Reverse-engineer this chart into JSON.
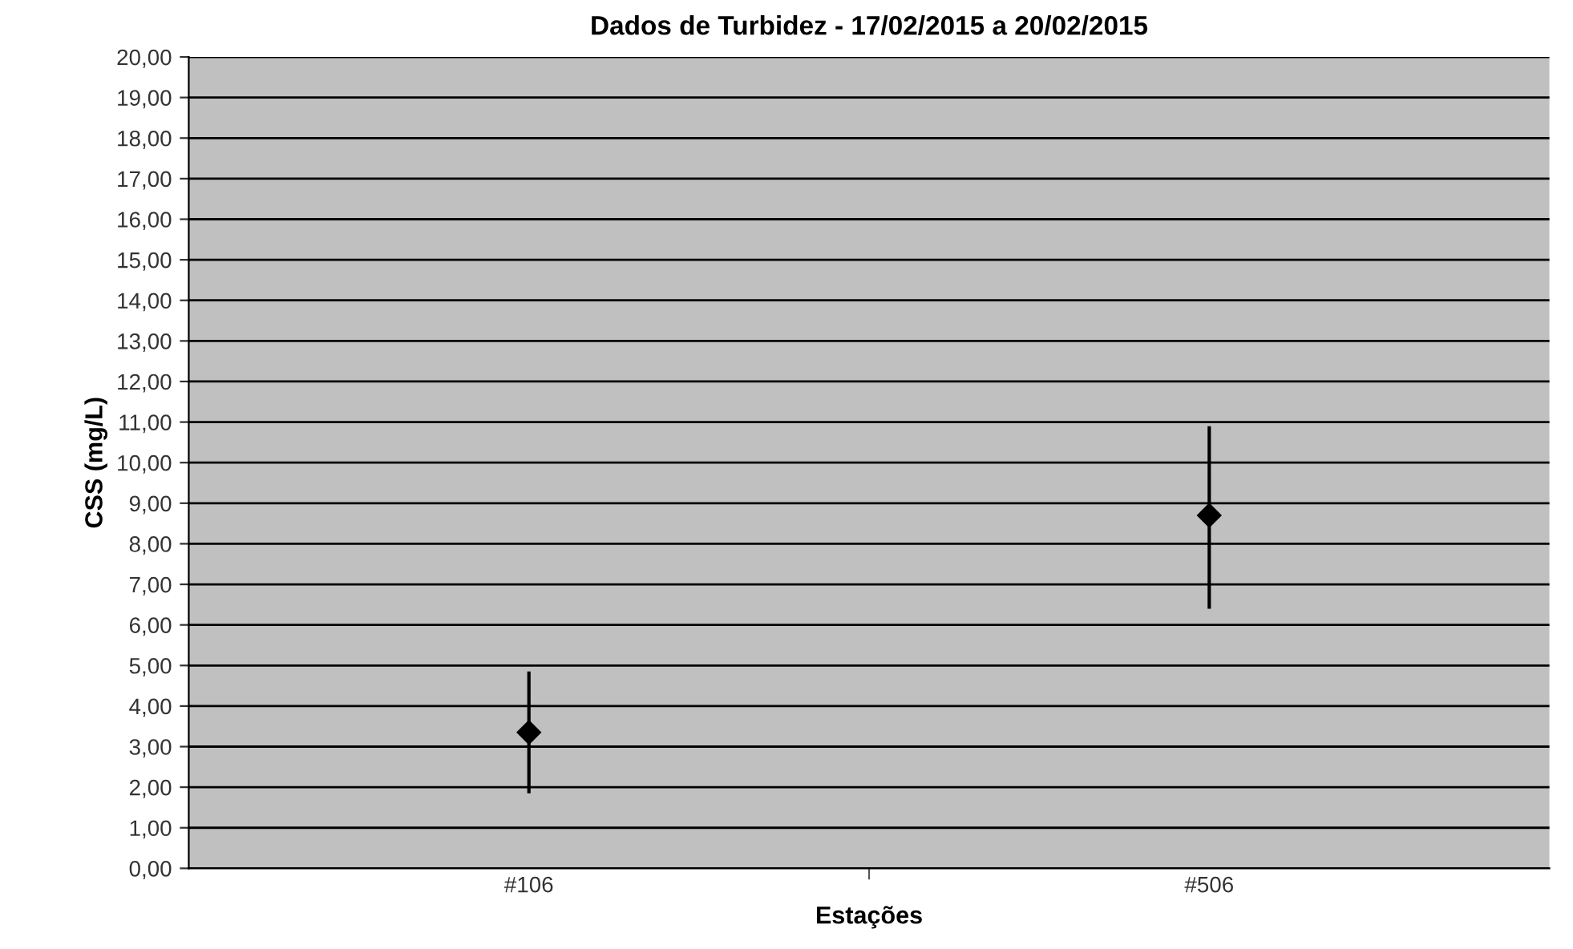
{
  "chart_data": {
    "type": "scatter",
    "title": "Dados de Turbidez - 17/02/2015 a 20/02/2015",
    "xlabel": "Estações",
    "ylabel": "CSS (mg/L)",
    "categories": [
      "#106",
      "#506"
    ],
    "series": [
      {
        "color": "#000000",
        "values": [
          3.35,
          8.7
        ],
        "errors": [
          [
            1.85,
            4.85
          ],
          [
            6.4,
            10.9
          ]
        ]
      }
    ],
    "ylim": [
      0,
      20
    ],
    "yticks": [
      {
        "value": 0,
        "label": "0,00"
      },
      {
        "value": 1,
        "label": "1,00"
      },
      {
        "value": 2,
        "label": "2,00"
      },
      {
        "value": 3,
        "label": "3,00"
      },
      {
        "value": 4,
        "label": "4,00"
      },
      {
        "value": 5,
        "label": "5,00"
      },
      {
        "value": 6,
        "label": "6,00"
      },
      {
        "value": 7,
        "label": "7,00"
      },
      {
        "value": 8,
        "label": "8,00"
      },
      {
        "value": 9,
        "label": "9,00"
      },
      {
        "value": 10,
        "label": "10,00"
      },
      {
        "value": 11,
        "label": "11,00"
      },
      {
        "value": 12,
        "label": "12,00"
      },
      {
        "value": 13,
        "label": "13,00"
      },
      {
        "value": 14,
        "label": "14,00"
      },
      {
        "value": 15,
        "label": "15,00"
      },
      {
        "value": 16,
        "label": "16,00"
      },
      {
        "value": 17,
        "label": "17,00"
      },
      {
        "value": 18,
        "label": "18,00"
      },
      {
        "value": 19,
        "label": "19,00"
      },
      {
        "value": 20,
        "label": "20,00"
      }
    ],
    "grid": "y",
    "marker": "diamond"
  }
}
